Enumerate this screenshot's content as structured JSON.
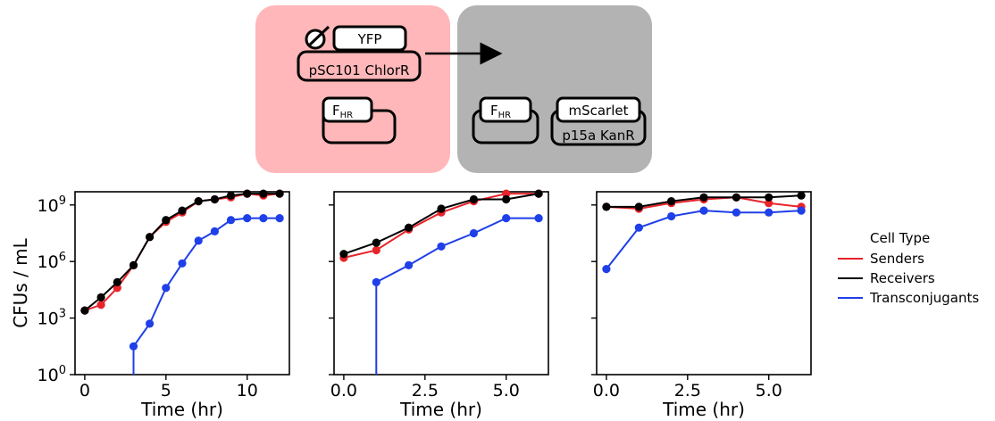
{
  "diagram": {
    "sender_box_color": "#ffb7b9",
    "receiver_box_color": "#b3b3b3",
    "plasmid_gene": "YFP",
    "plasmid_backbone": "pSC101 ChlorR",
    "fhr_base": "F",
    "fhr_sub": "HR",
    "reporter_gene": "mScarlet",
    "reporter_backbone": "p15a KanR"
  },
  "legend": {
    "title": "Cell Type",
    "items": [
      {
        "label": "Senders",
        "color": "#e8232a"
      },
      {
        "label": "Receivers",
        "color": "#000000"
      },
      {
        "label": "Transconjugants",
        "color": "#1f3fe8"
      }
    ]
  },
  "chart_data": [
    {
      "type": "line",
      "xlabel": "Time (hr)",
      "ylabel": "CFUs / mL",
      "yscale": "log",
      "xlim": [
        -0.6,
        12.6
      ],
      "ylim_log10": [
        0,
        9.7
      ],
      "xticks": [
        0,
        5,
        10
      ],
      "xtick_labels": [
        "0",
        "5",
        "10"
      ],
      "yticks_log10": [
        0,
        3,
        6,
        9
      ],
      "ytick_labels": [
        "10^0",
        "10^3",
        "10^6",
        "10^9"
      ],
      "series": [
        {
          "name": "Senders",
          "x": [
            0,
            1,
            2,
            3,
            4,
            5,
            6,
            7,
            8,
            9,
            10,
            11,
            12
          ],
          "log10_y": [
            3.4,
            3.7,
            4.6,
            5.8,
            7.3,
            8.1,
            8.6,
            9.2,
            9.3,
            9.4,
            9.6,
            9.5,
            9.6
          ]
        },
        {
          "name": "Receivers",
          "x": [
            0,
            1,
            2,
            3,
            4,
            5,
            6,
            7,
            8,
            9,
            10,
            11,
            12
          ],
          "log10_y": [
            3.4,
            4.1,
            4.9,
            5.8,
            7.3,
            8.2,
            8.7,
            9.2,
            9.3,
            9.5,
            9.6,
            9.6,
            9.6
          ]
        },
        {
          "name": "Transconjugants",
          "x": [
            3,
            3,
            4,
            5,
            6,
            7,
            8,
            9,
            10,
            11,
            12
          ],
          "log10_y": [
            0,
            1.5,
            2.7,
            4.6,
            5.9,
            7.1,
            7.6,
            8.2,
            8.3,
            8.3,
            8.3
          ]
        }
      ]
    },
    {
      "type": "line",
      "xlabel": "Time (hr)",
      "yscale": "log",
      "xlim": [
        -0.3,
        6.3
      ],
      "ylim_log10": [
        0,
        9.7
      ],
      "xticks": [
        0,
        2.5,
        5
      ],
      "xtick_labels": [
        "0.0",
        "2.5",
        "5.0"
      ],
      "series": [
        {
          "name": "Senders",
          "x": [
            0,
            1,
            2,
            3,
            4,
            5,
            6
          ],
          "log10_y": [
            6.2,
            6.6,
            7.7,
            8.6,
            9.2,
            9.6,
            9.6
          ]
        },
        {
          "name": "Receivers",
          "x": [
            0,
            1,
            2,
            3,
            4,
            5,
            6
          ],
          "log10_y": [
            6.4,
            7.0,
            7.8,
            8.8,
            9.3,
            9.3,
            9.6
          ]
        },
        {
          "name": "Transconjugants",
          "x": [
            1,
            1,
            2,
            3,
            4,
            5,
            6
          ],
          "log10_y": [
            0,
            4.9,
            5.8,
            6.8,
            7.5,
            8.3,
            8.3
          ]
        }
      ]
    },
    {
      "type": "line",
      "xlabel": "Time (hr)",
      "yscale": "log",
      "xlim": [
        -0.3,
        6.3
      ],
      "ylim_log10": [
        0,
        9.7
      ],
      "xticks": [
        0,
        2.5,
        5
      ],
      "xtick_labels": [
        "0.0",
        "2.5",
        "5.0"
      ],
      "series": [
        {
          "name": "Senders",
          "x": [
            0,
            1,
            2,
            3,
            4,
            5,
            6
          ],
          "log10_y": [
            8.9,
            8.8,
            9.1,
            9.3,
            9.4,
            9.1,
            8.9
          ]
        },
        {
          "name": "Receivers",
          "x": [
            0,
            1,
            2,
            3,
            4,
            5,
            6
          ],
          "log10_y": [
            8.9,
            8.9,
            9.2,
            9.4,
            9.4,
            9.4,
            9.5
          ]
        },
        {
          "name": "Transconjugants",
          "x": [
            0,
            1,
            2,
            3,
            4,
            5,
            6
          ],
          "log10_y": [
            5.6,
            7.8,
            8.4,
            8.7,
            8.6,
            8.6,
            8.7
          ]
        }
      ]
    }
  ]
}
